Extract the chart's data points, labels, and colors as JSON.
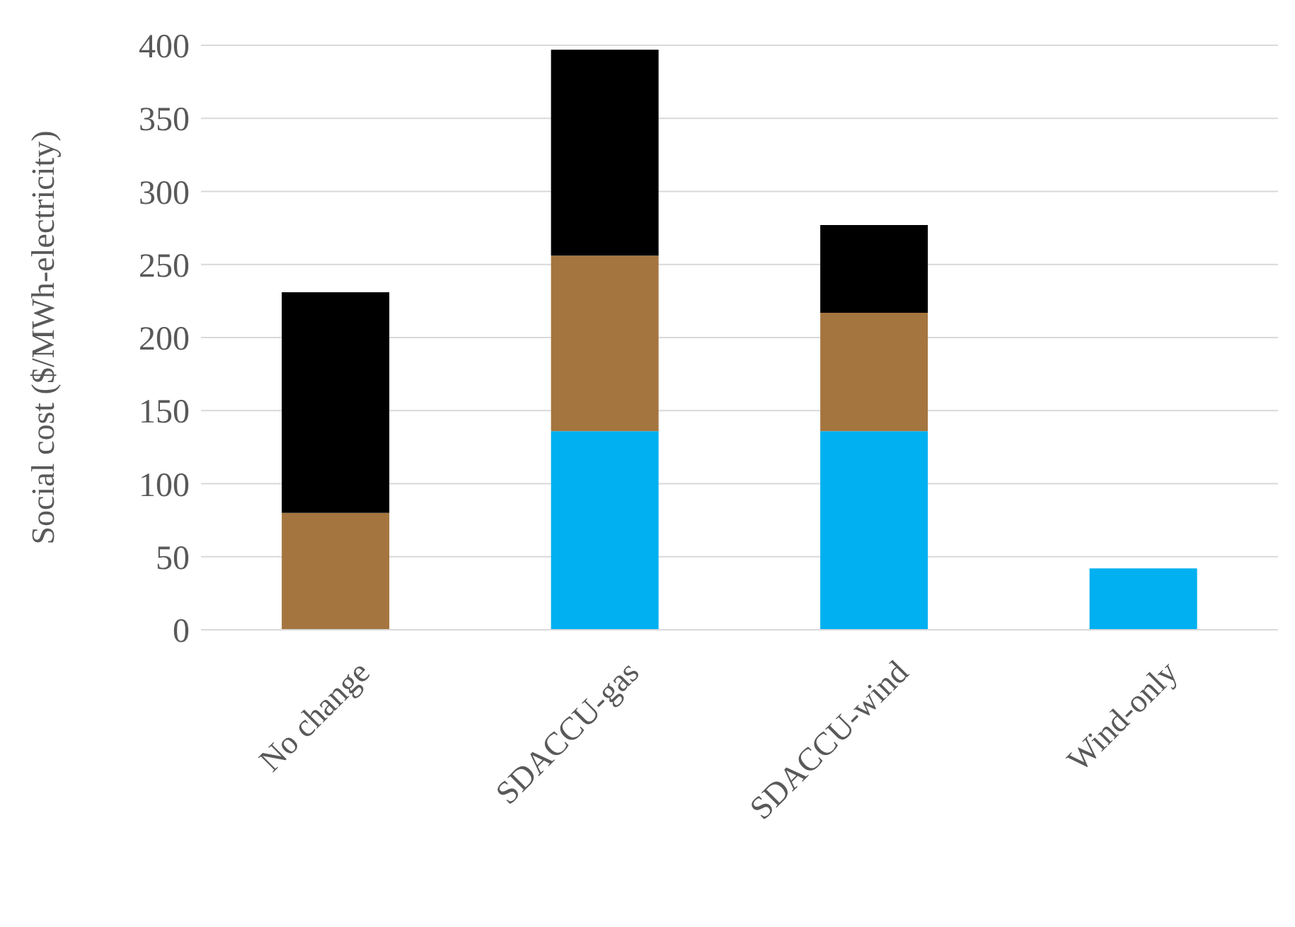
{
  "chart_data": {
    "type": "bar",
    "stacked": true,
    "ylabel": "Social cost ($/MWh-electricity)",
    "categories": [
      "No change",
      "SDACCU-gas",
      "SDACCU-wind",
      "Wind-only"
    ],
    "series": [
      {
        "color": "#00b0f0",
        "values": [
          null,
          136,
          136,
          42
        ]
      },
      {
        "color": "#a5753f",
        "values": [
          80,
          120,
          81,
          null
        ]
      },
      {
        "color": "#000000",
        "values": [
          151,
          141,
          60,
          null
        ]
      }
    ],
    "ylim": [
      0,
      400
    ],
    "yticks": [
      0,
      50,
      100,
      150,
      200,
      250,
      300,
      350,
      400
    ],
    "grid": "y",
    "legend": false
  }
}
